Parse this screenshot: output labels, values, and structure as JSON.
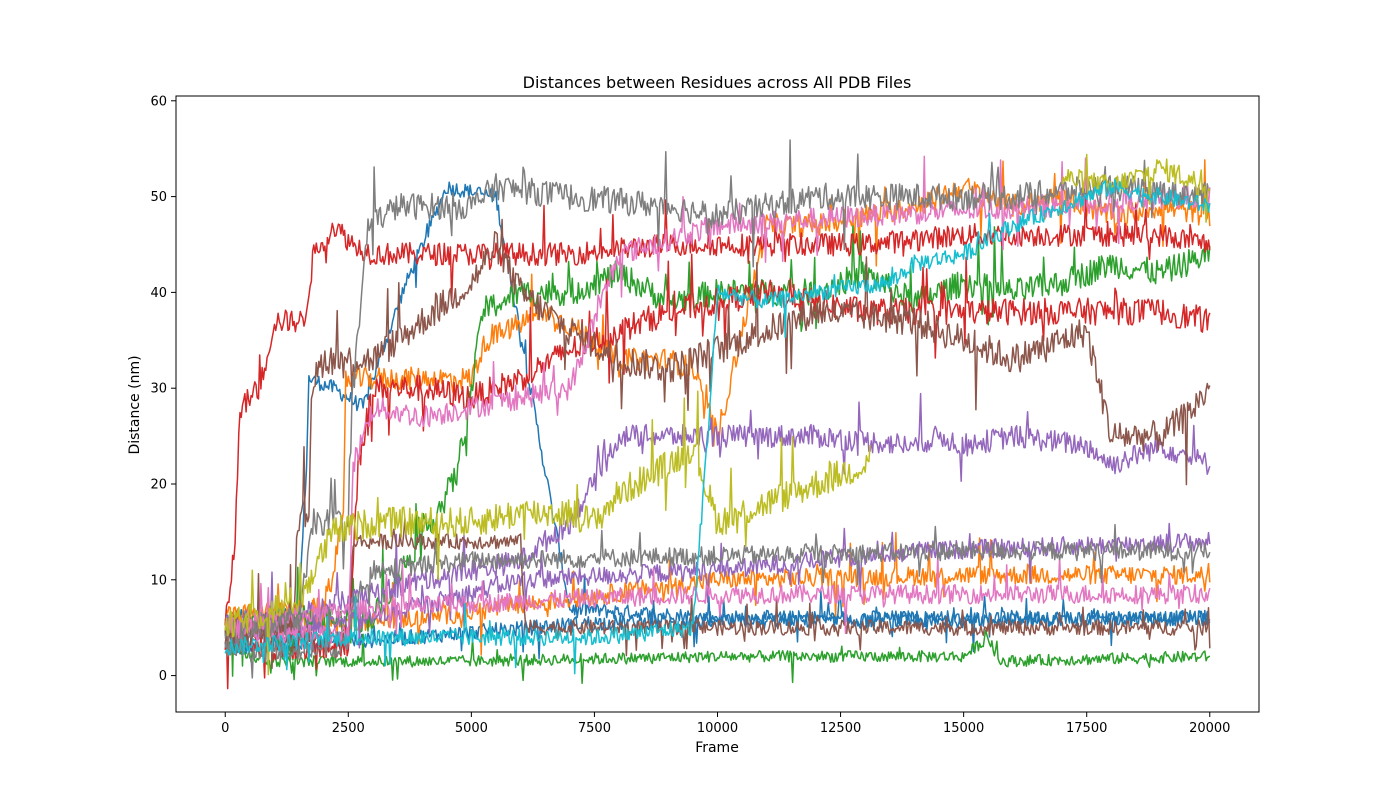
{
  "chart_data": {
    "type": "line",
    "title": "Distances between Residues across All PDB Files",
    "xlabel": "Frame",
    "ylabel": "Distance (nm)",
    "xlim": [
      -1000,
      21000
    ],
    "ylim": [
      -3.8,
      60.5
    ],
    "xticks": [
      0,
      2500,
      5000,
      7500,
      10000,
      12500,
      15000,
      17500,
      20000
    ],
    "yticks": [
      0,
      10,
      20,
      30,
      40,
      50,
      60
    ],
    "grid": false,
    "legend": "none",
    "series": [
      {
        "color": "#1f77b4",
        "noise": 0.8,
        "points": [
          [
            0,
            6
          ],
          [
            1500,
            7
          ],
          [
            1650,
            22
          ],
          [
            1700,
            31
          ],
          [
            2200,
            30
          ],
          [
            2800,
            28
          ],
          [
            3600,
            40
          ],
          [
            4500,
            51
          ],
          [
            5500,
            50
          ],
          [
            7000,
            7
          ],
          [
            10000,
            6
          ],
          [
            15000,
            6
          ],
          [
            20000,
            6
          ]
        ]
      },
      {
        "color": "#1f77b4",
        "noise": 0.8,
        "points": [
          [
            0,
            3
          ],
          [
            2500,
            3.5
          ],
          [
            7400,
            5.5
          ],
          [
            20000,
            6
          ]
        ]
      },
      {
        "color": "#ff7f0e",
        "noise": 1.2,
        "points": [
          [
            0,
            6
          ],
          [
            2000,
            7
          ],
          [
            2400,
            16
          ],
          [
            2450,
            31
          ],
          [
            3500,
            31
          ],
          [
            5000,
            31
          ],
          [
            5300,
            35
          ],
          [
            6500,
            38
          ],
          [
            7500,
            35
          ],
          [
            8000,
            33
          ],
          [
            9000,
            33
          ],
          [
            9500,
            32
          ],
          [
            10000,
            25
          ],
          [
            11000,
            47
          ],
          [
            12000,
            47
          ],
          [
            13000,
            48
          ],
          [
            14000,
            49
          ],
          [
            15000,
            51
          ],
          [
            16000,
            49
          ],
          [
            17000,
            50
          ],
          [
            18000,
            48
          ],
          [
            19000,
            49
          ],
          [
            20000,
            48
          ]
        ]
      },
      {
        "color": "#ff7f0e",
        "noise": 1.0,
        "points": [
          [
            0,
            5
          ],
          [
            4000,
            6
          ],
          [
            7000,
            8
          ],
          [
            10000,
            10
          ],
          [
            15000,
            10.5
          ],
          [
            20000,
            10.5
          ]
        ]
      },
      {
        "color": "#2ca02c",
        "noise": 0.6,
        "points": [
          [
            0,
            4
          ],
          [
            500,
            2
          ],
          [
            1000,
            1.5
          ],
          [
            5000,
            1.5
          ],
          [
            10000,
            2
          ],
          [
            15000,
            2
          ],
          [
            15500,
            4
          ],
          [
            15700,
            1.5
          ],
          [
            20000,
            2
          ]
        ]
      },
      {
        "color": "#2ca02c",
        "noise": 1.4,
        "points": [
          [
            0,
            5
          ],
          [
            3000,
            6
          ],
          [
            4400,
            18
          ],
          [
            4700,
            21
          ],
          [
            5100,
            33
          ],
          [
            5200,
            38
          ],
          [
            6000,
            40
          ],
          [
            7000,
            40
          ],
          [
            8000,
            42
          ],
          [
            9000,
            39
          ],
          [
            10000,
            40
          ],
          [
            11000,
            40
          ],
          [
            12000,
            40
          ],
          [
            13000,
            42
          ],
          [
            14000,
            39
          ],
          [
            15000,
            41
          ],
          [
            16000,
            40
          ],
          [
            17000,
            41
          ],
          [
            18000,
            43
          ],
          [
            19000,
            42
          ],
          [
            20000,
            44
          ]
        ]
      },
      {
        "color": "#d62728",
        "noise": 1.2,
        "points": [
          [
            0,
            5
          ],
          [
            200,
            14
          ],
          [
            300,
            28
          ],
          [
            700,
            30
          ],
          [
            1000,
            37
          ],
          [
            1600,
            37
          ],
          [
            1800,
            44
          ],
          [
            2200,
            47
          ],
          [
            2600,
            45
          ],
          [
            3000,
            44
          ],
          [
            5000,
            44
          ],
          [
            7000,
            44
          ],
          [
            9000,
            45
          ],
          [
            11000,
            45
          ],
          [
            13000,
            45
          ],
          [
            15000,
            46
          ],
          [
            17000,
            46
          ],
          [
            19000,
            46
          ],
          [
            20000,
            45
          ]
        ]
      },
      {
        "color": "#d62728",
        "noise": 1.4,
        "points": [
          [
            0,
            4
          ],
          [
            1000,
            3
          ],
          [
            2500,
            3
          ],
          [
            2700,
            22
          ],
          [
            3000,
            30
          ],
          [
            4000,
            30
          ],
          [
            5000,
            29
          ],
          [
            6000,
            31
          ],
          [
            7000,
            34
          ],
          [
            8000,
            36
          ],
          [
            9000,
            38
          ],
          [
            11000,
            40
          ],
          [
            13000,
            38
          ],
          [
            15000,
            38
          ],
          [
            17000,
            38
          ],
          [
            19000,
            38
          ],
          [
            20000,
            37
          ]
        ]
      },
      {
        "color": "#9467bd",
        "noise": 1.2,
        "points": [
          [
            0,
            5
          ],
          [
            2000,
            7
          ],
          [
            4000,
            10
          ],
          [
            6000,
            12
          ],
          [
            7000,
            16
          ],
          [
            7700,
            22
          ],
          [
            8000,
            25
          ],
          [
            9000,
            25
          ],
          [
            10000,
            25
          ],
          [
            12000,
            25
          ],
          [
            14000,
            24
          ],
          [
            14500,
            25
          ],
          [
            15000,
            24
          ],
          [
            16000,
            25
          ],
          [
            17500,
            24
          ],
          [
            18000,
            22
          ],
          [
            19000,
            24
          ],
          [
            20000,
            22
          ]
        ]
      },
      {
        "color": "#9467bd",
        "noise": 1.0,
        "points": [
          [
            0,
            4
          ],
          [
            3000,
            6
          ],
          [
            6000,
            10
          ],
          [
            10000,
            11
          ],
          [
            14000,
            13
          ],
          [
            20000,
            14
          ]
        ]
      },
      {
        "color": "#8c564b",
        "noise": 1.6,
        "points": [
          [
            0,
            4
          ],
          [
            1400,
            6
          ],
          [
            1450,
            16
          ],
          [
            1700,
            17
          ],
          [
            1750,
            30
          ],
          [
            2000,
            33
          ],
          [
            3000,
            33
          ],
          [
            5000,
            41
          ],
          [
            5500,
            45
          ],
          [
            6000,
            40
          ],
          [
            7000,
            36
          ],
          [
            8000,
            33
          ],
          [
            9000,
            32
          ],
          [
            10000,
            34
          ],
          [
            12000,
            38
          ],
          [
            14000,
            37
          ],
          [
            16000,
            33
          ],
          [
            17000,
            35
          ],
          [
            17500,
            36
          ],
          [
            18000,
            25
          ],
          [
            19000,
            25
          ],
          [
            19500,
            27
          ],
          [
            20000,
            30
          ]
        ]
      },
      {
        "color": "#8c564b",
        "noise": 0.8,
        "points": [
          [
            0,
            4
          ],
          [
            2500,
            4
          ],
          [
            2600,
            14
          ],
          [
            6000,
            14
          ],
          [
            6100,
            5
          ],
          [
            20000,
            5
          ]
        ]
      },
      {
        "color": "#e377c2",
        "noise": 1.0,
        "points": [
          [
            0,
            5
          ],
          [
            1000,
            6
          ],
          [
            3000,
            7
          ],
          [
            5000,
            7.5
          ],
          [
            7000,
            8
          ],
          [
            10000,
            8.5
          ],
          [
            15000,
            8.5
          ],
          [
            20000,
            8.5
          ]
        ]
      },
      {
        "color": "#e377c2",
        "noise": 1.2,
        "points": [
          [
            0,
            5
          ],
          [
            2500,
            4
          ],
          [
            2600,
            22
          ],
          [
            3000,
            28
          ],
          [
            4000,
            27
          ],
          [
            5000,
            28
          ],
          [
            7000,
            30
          ],
          [
            8000,
            44
          ],
          [
            10000,
            47
          ],
          [
            13000,
            48
          ],
          [
            20000,
            50
          ]
        ]
      },
      {
        "color": "#7f7f7f",
        "noise": 1.4,
        "points": [
          [
            0,
            4
          ],
          [
            1500,
            6
          ],
          [
            1800,
            16
          ],
          [
            2500,
            16
          ],
          [
            2600,
            30
          ],
          [
            2900,
            47
          ],
          [
            3500,
            49
          ],
          [
            5000,
            49
          ],
          [
            5500,
            51
          ],
          [
            7000,
            50
          ],
          [
            9000,
            49
          ],
          [
            10000,
            48
          ],
          [
            12000,
            50
          ],
          [
            14000,
            50
          ],
          [
            16000,
            50
          ],
          [
            18000,
            51
          ],
          [
            20000,
            50
          ]
        ]
      },
      {
        "color": "#7f7f7f",
        "noise": 1.0,
        "points": [
          [
            0,
            3
          ],
          [
            1500,
            2.5
          ],
          [
            2500,
            3
          ],
          [
            2600,
            8
          ],
          [
            3000,
            11
          ],
          [
            5000,
            12
          ],
          [
            10000,
            12.5
          ],
          [
            15000,
            13
          ],
          [
            20000,
            13
          ]
        ]
      },
      {
        "color": "#bcbd22",
        "noise": 1.6,
        "points": [
          [
            0,
            5
          ],
          [
            1500,
            8
          ],
          [
            2200,
            15
          ],
          [
            3000,
            16
          ],
          [
            5000,
            16
          ],
          [
            6000,
            17
          ],
          [
            7000,
            17
          ],
          [
            7500,
            16
          ],
          [
            8000,
            19
          ],
          [
            9000,
            22
          ],
          [
            9500,
            24
          ],
          [
            10000,
            16
          ],
          [
            11000,
            18
          ],
          [
            12000,
            20
          ],
          [
            13000,
            22
          ],
          [
            13100,
            23
          ]
        ]
      },
      {
        "color": "#bcbd22",
        "noise": 1.2,
        "points": [
          [
            17000,
            52
          ],
          [
            18000,
            51
          ],
          [
            19000,
            53
          ],
          [
            20000,
            51
          ]
        ]
      },
      {
        "color": "#17becf",
        "noise": 0.9,
        "points": [
          [
            0,
            3
          ],
          [
            2500,
            4
          ],
          [
            5000,
            4
          ],
          [
            7500,
            4
          ],
          [
            8500,
            4.5
          ],
          [
            9500,
            5
          ],
          [
            9800,
            25
          ],
          [
            10000,
            40
          ],
          [
            11000,
            39
          ],
          [
            12000,
            40
          ],
          [
            13500,
            41
          ],
          [
            14000,
            43
          ],
          [
            15000,
            44
          ],
          [
            16000,
            47
          ],
          [
            17000,
            49
          ],
          [
            18000,
            51
          ],
          [
            19000,
            50
          ],
          [
            20000,
            49
          ]
        ]
      }
    ]
  }
}
